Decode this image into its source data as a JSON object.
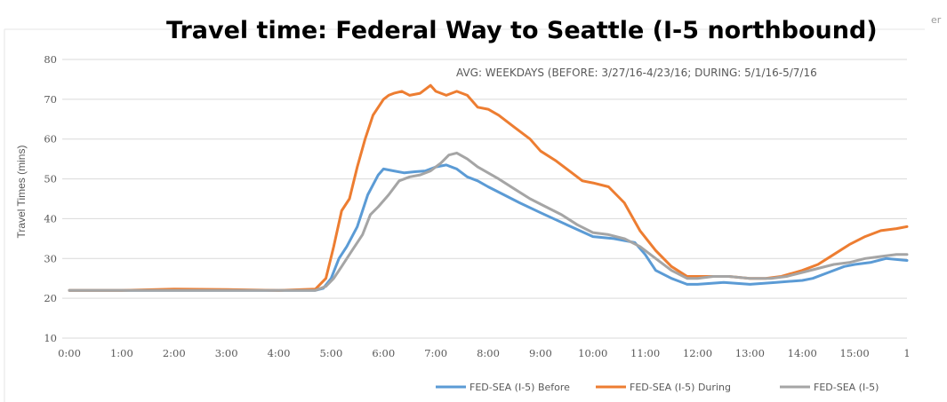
{
  "chart_data": {
    "type": "line",
    "title": "Travel time: Federal Way to Seattle  (I-5 northbound)",
    "subtitle": "AVG: WEEKDAYS (BEFORE: 3/27/16-4/23/16; DURING: 5/1/16-5/7/16",
    "ylabel": "Travel Times (mins)",
    "xlabel": "",
    "corner_text": "er",
    "ylim": [
      10,
      80
    ],
    "yticks": [
      10,
      20,
      30,
      40,
      50,
      60,
      70,
      80
    ],
    "xlim": [
      0,
      16
    ],
    "xtick_labels": [
      "0:00",
      "1:00",
      "2:00",
      "3:00",
      "4:00",
      "5:00",
      "6:00",
      "7:00",
      "8:00",
      "9:00",
      "10:00",
      "11:00",
      "12:00",
      "13:00",
      "14:00",
      "15:00",
      "1"
    ],
    "grid": "horizontal",
    "legend_position": "bottom-right",
    "series": [
      {
        "name": "FED-SEA (I-5) Before",
        "color": "#5b9bd5",
        "points": [
          [
            0,
            22
          ],
          [
            1,
            22
          ],
          [
            2,
            22
          ],
          [
            3,
            22
          ],
          [
            4,
            22
          ],
          [
            4.7,
            22
          ],
          [
            4.85,
            22.5
          ],
          [
            5,
            25
          ],
          [
            5.15,
            30
          ],
          [
            5.3,
            33
          ],
          [
            5.5,
            38
          ],
          [
            5.7,
            46
          ],
          [
            5.9,
            51
          ],
          [
            6.0,
            52.5
          ],
          [
            6.2,
            52
          ],
          [
            6.4,
            51.5
          ],
          [
            6.6,
            51.8
          ],
          [
            6.8,
            52
          ],
          [
            7.0,
            53
          ],
          [
            7.2,
            53.5
          ],
          [
            7.4,
            52.5
          ],
          [
            7.6,
            50.5
          ],
          [
            7.8,
            49.5
          ],
          [
            8.0,
            48
          ],
          [
            8.3,
            46
          ],
          [
            8.6,
            44
          ],
          [
            9.0,
            41.5
          ],
          [
            9.5,
            38.5
          ],
          [
            10.0,
            35.5
          ],
          [
            10.4,
            35
          ],
          [
            10.8,
            34
          ],
          [
            11.0,
            31
          ],
          [
            11.2,
            27
          ],
          [
            11.5,
            25
          ],
          [
            11.8,
            23.5
          ],
          [
            12.0,
            23.5
          ],
          [
            12.5,
            24
          ],
          [
            13.0,
            23.5
          ],
          [
            13.5,
            24
          ],
          [
            14.0,
            24.5
          ],
          [
            14.2,
            25
          ],
          [
            14.5,
            26.5
          ],
          [
            14.8,
            28
          ],
          [
            15.0,
            28.5
          ],
          [
            15.3,
            29
          ],
          [
            15.6,
            30
          ],
          [
            16,
            29.5
          ]
        ]
      },
      {
        "name": "FED-SEA (I-5) During",
        "color": "#ed7d31",
        "points": [
          [
            0,
            22
          ],
          [
            1,
            22
          ],
          [
            2,
            22.3
          ],
          [
            3,
            22.2
          ],
          [
            4,
            22
          ],
          [
            4.7,
            22.3
          ],
          [
            4.9,
            25
          ],
          [
            5.05,
            33
          ],
          [
            5.2,
            42
          ],
          [
            5.35,
            45
          ],
          [
            5.5,
            53
          ],
          [
            5.65,
            60
          ],
          [
            5.8,
            66
          ],
          [
            6.0,
            70
          ],
          [
            6.1,
            71
          ],
          [
            6.2,
            71.5
          ],
          [
            6.35,
            72
          ],
          [
            6.5,
            71
          ],
          [
            6.7,
            71.5
          ],
          [
            6.9,
            73.5
          ],
          [
            7.0,
            72
          ],
          [
            7.2,
            71
          ],
          [
            7.4,
            72
          ],
          [
            7.6,
            71
          ],
          [
            7.8,
            68
          ],
          [
            8.0,
            67.5
          ],
          [
            8.2,
            66
          ],
          [
            8.5,
            63
          ],
          [
            8.8,
            60
          ],
          [
            9.0,
            57
          ],
          [
            9.3,
            54.5
          ],
          [
            9.6,
            51.5
          ],
          [
            9.8,
            49.5
          ],
          [
            10.0,
            49
          ],
          [
            10.3,
            48
          ],
          [
            10.6,
            44
          ],
          [
            10.9,
            37
          ],
          [
            11.2,
            32
          ],
          [
            11.5,
            28
          ],
          [
            11.8,
            25.5
          ],
          [
            12.0,
            25.5
          ],
          [
            12.3,
            25.5
          ],
          [
            12.6,
            25.5
          ],
          [
            13.0,
            25
          ],
          [
            13.3,
            25
          ],
          [
            13.6,
            25.5
          ],
          [
            14.0,
            27
          ],
          [
            14.3,
            28.5
          ],
          [
            14.6,
            31
          ],
          [
            14.9,
            33.5
          ],
          [
            15.2,
            35.5
          ],
          [
            15.5,
            37
          ],
          [
            15.8,
            37.5
          ],
          [
            16,
            38
          ]
        ]
      },
      {
        "name": "FED-SEA (I-5)",
        "color": "#a5a5a5",
        "points": [
          [
            0,
            22
          ],
          [
            1,
            22
          ],
          [
            2,
            22
          ],
          [
            3,
            22
          ],
          [
            4,
            22
          ],
          [
            4.7,
            22
          ],
          [
            4.9,
            23
          ],
          [
            5.05,
            25
          ],
          [
            5.2,
            28
          ],
          [
            5.4,
            32
          ],
          [
            5.6,
            36
          ],
          [
            5.75,
            41
          ],
          [
            5.9,
            43
          ],
          [
            6.1,
            46
          ],
          [
            6.3,
            49.5
          ],
          [
            6.5,
            50.5
          ],
          [
            6.7,
            51
          ],
          [
            6.9,
            52
          ],
          [
            7.1,
            54
          ],
          [
            7.25,
            56
          ],
          [
            7.4,
            56.5
          ],
          [
            7.6,
            55
          ],
          [
            7.8,
            53
          ],
          [
            8.0,
            51.5
          ],
          [
            8.2,
            50
          ],
          [
            8.5,
            47.5
          ],
          [
            8.8,
            45
          ],
          [
            9.1,
            43
          ],
          [
            9.4,
            41
          ],
          [
            9.7,
            38.5
          ],
          [
            10.0,
            36.5
          ],
          [
            10.3,
            36
          ],
          [
            10.6,
            35
          ],
          [
            10.9,
            33
          ],
          [
            11.2,
            30
          ],
          [
            11.5,
            27
          ],
          [
            11.8,
            25
          ],
          [
            12.0,
            25
          ],
          [
            12.3,
            25.5
          ],
          [
            12.6,
            25.5
          ],
          [
            13.0,
            25
          ],
          [
            13.4,
            25
          ],
          [
            13.7,
            25.5
          ],
          [
            14.0,
            26.5
          ],
          [
            14.3,
            27.5
          ],
          [
            14.6,
            28.5
          ],
          [
            14.9,
            29
          ],
          [
            15.2,
            30
          ],
          [
            15.5,
            30.5
          ],
          [
            15.8,
            31
          ],
          [
            16,
            31
          ]
        ]
      }
    ]
  }
}
